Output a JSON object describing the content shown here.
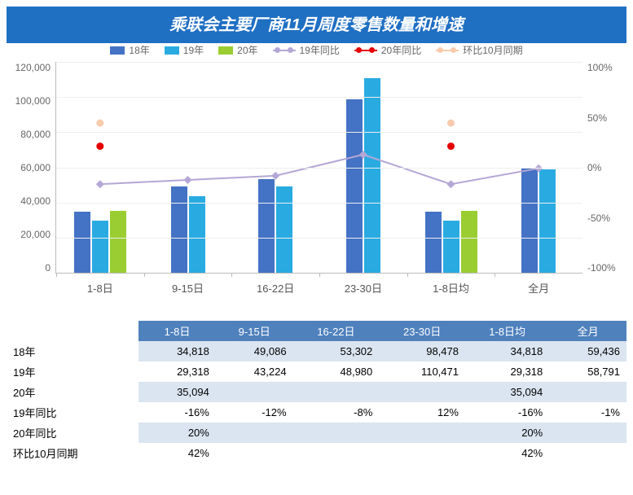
{
  "title": "乘联会主要厂商11月周度零售数量和增速",
  "title_color": "#ffffff",
  "title_bg": "#1f6fc3",
  "title_fontsize": 20,
  "legend": [
    {
      "label": "18年",
      "type": "box",
      "color": "#4472c4"
    },
    {
      "label": "19年",
      "type": "box",
      "color": "#29abe2"
    },
    {
      "label": "20年",
      "type": "box",
      "color": "#9acd32"
    },
    {
      "label": "19年同比",
      "type": "line",
      "color": "#b4a7d6"
    },
    {
      "label": "20年同比",
      "type": "line",
      "color": "#e60000"
    },
    {
      "label": "环比10月同期",
      "type": "line",
      "color": "#f8cbad"
    }
  ],
  "chart": {
    "categories": [
      "1-8日",
      "9-15日",
      "16-22日",
      "23-30日",
      "1-8日均",
      "全月"
    ],
    "y_left": {
      "min": 0,
      "max": 120000,
      "step": 20000,
      "labels": [
        "120,000",
        "100,000",
        "80,000",
        "60,000",
        "40,000",
        "20,000",
        "0"
      ]
    },
    "y_right": {
      "min": -100,
      "max": 100,
      "step": 50,
      "labels": [
        "100%",
        "50%",
        "0%",
        "-50%",
        "-100%"
      ]
    },
    "bars": {
      "series": [
        {
          "name": "18年",
          "color": "#4472c4",
          "values": [
            34818,
            49086,
            53302,
            98478,
            34818,
            59436
          ]
        },
        {
          "name": "19年",
          "color": "#29abe2",
          "values": [
            29318,
            43224,
            48980,
            110471,
            29318,
            58791
          ]
        },
        {
          "name": "20年",
          "color": "#9acd32",
          "values": [
            35094,
            null,
            null,
            null,
            35094,
            null
          ]
        }
      ]
    },
    "lines": {
      "series": [
        {
          "name": "19年同比",
          "color": "#b4a7d6",
          "marker": "diamond",
          "connect": true,
          "values": [
            -16,
            -12,
            -8,
            12,
            -16,
            -1
          ]
        },
        {
          "name": "20年同比",
          "color": "#e60000",
          "marker": "circle",
          "connect": false,
          "values": [
            20,
            null,
            null,
            null,
            20,
            null
          ]
        },
        {
          "name": "环比10月同期",
          "color": "#f8cbad",
          "marker": "circle",
          "connect": false,
          "values": [
            42,
            null,
            null,
            null,
            42,
            null
          ]
        }
      ]
    },
    "grid_color": "#eeeeee",
    "axis_color": "#bbbbbb",
    "background": "#ffffff",
    "tick_fontsize": 12,
    "tick_color": "#666666"
  },
  "table": {
    "header_bg": "#4f81bd",
    "header_color": "#ffffff",
    "row_alt_bg": "#dbe5f1",
    "columns": [
      "",
      "1-8日",
      "9-15日",
      "16-22日",
      "23-30日",
      "1-8日均",
      "全月"
    ],
    "rows": [
      {
        "label": "18年",
        "cells": [
          "34,818",
          "49,086",
          "53,302",
          "98,478",
          "34,818",
          "59,436"
        ]
      },
      {
        "label": "19年",
        "cells": [
          "29,318",
          "43,224",
          "48,980",
          "110,471",
          "29,318",
          "58,791"
        ]
      },
      {
        "label": "20年",
        "cells": [
          "35,094",
          "",
          "",
          "",
          "35,094",
          ""
        ]
      },
      {
        "label": "19年同比",
        "cells": [
          "-16%",
          "-12%",
          "-8%",
          "12%",
          "-16%",
          "-1%"
        ]
      },
      {
        "label": "20年同比",
        "cells": [
          "20%",
          "",
          "",
          "",
          "20%",
          ""
        ]
      },
      {
        "label": "环比10月同期",
        "cells": [
          "42%",
          "",
          "",
          "",
          "42%",
          ""
        ]
      }
    ]
  }
}
